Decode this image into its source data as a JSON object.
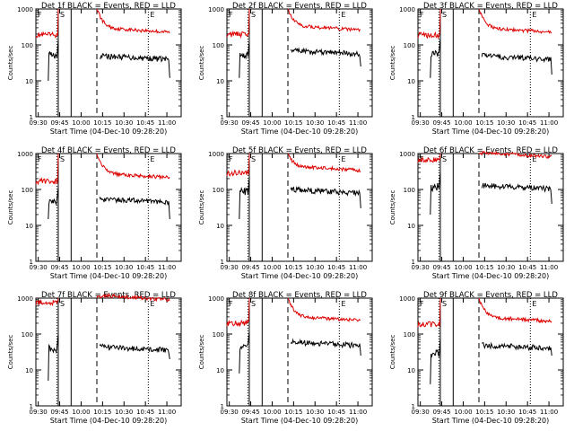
{
  "chart_data": [
    {
      "type": "line",
      "title": "Det 1f BLACK = Events, RED = LLD",
      "xlabel": "Start Time (04-Dec-10 09:28:20)",
      "ylabel": "Counts/sec",
      "yscale": "log",
      "ylim": [
        1,
        1000
      ],
      "x_ticks": [
        "09:30",
        "09:45",
        "10:00",
        "10:15",
        "10:30",
        "10:45",
        "11:00"
      ],
      "y_ticks": [
        "1",
        "10",
        "100",
        "1000"
      ],
      "markers": [
        "F",
        "S",
        "E"
      ],
      "series": [
        {
          "name": "RED = LLD",
          "color": "#dd0000",
          "level_before": 190,
          "level_after": 200,
          "peak": 1000
        },
        {
          "name": "BLACK = Events",
          "color": "#000000",
          "level_before": 55,
          "level_after": 50,
          "start": 10,
          "end": 12
        }
      ]
    },
    {
      "type": "line",
      "title": "Det 2f BLACK = Events, RED = LLD",
      "xlabel": "Start Time (04-Dec-10 09:28:20)",
      "ylabel": "Counts/sec",
      "yscale": "log",
      "ylim": [
        1,
        1000
      ],
      "x_ticks": [
        "09:30",
        "09:45",
        "10:00",
        "10:15",
        "10:30",
        "10:45",
        "11:00"
      ],
      "y_ticks": [
        "1",
        "10",
        "100",
        "1000"
      ],
      "markers": [
        "F",
        "S",
        "E"
      ],
      "series": [
        {
          "name": "RED = LLD",
          "color": "#dd0000",
          "level_before": 200,
          "level_after": 230,
          "peak": 1000
        },
        {
          "name": "BLACK = Events",
          "color": "#000000",
          "level_before": 50,
          "level_after": 70,
          "start": 12,
          "end": 25
        }
      ]
    },
    {
      "type": "line",
      "title": "Det 3f BLACK = Events, RED = LLD",
      "xlabel": "Start Time (04-Dec-10 09:28:20)",
      "ylabel": "Counts/sec",
      "yscale": "log",
      "ylim": [
        1,
        1000
      ],
      "x_ticks": [
        "09:30",
        "09:45",
        "10:00",
        "10:15",
        "10:30",
        "10:45",
        "11:00"
      ],
      "y_ticks": [
        "1",
        "10",
        "100",
        "1000"
      ],
      "markers": [
        "F",
        "S",
        "E"
      ],
      "series": [
        {
          "name": "RED = LLD",
          "color": "#dd0000",
          "level_before": 190,
          "level_after": 200,
          "peak": 1000
        },
        {
          "name": "BLACK = Events",
          "color": "#000000",
          "level_before": 60,
          "level_after": 50,
          "start": 12,
          "end": 15
        }
      ]
    },
    {
      "type": "line",
      "title": "Det 4f BLACK = Events, RED = LLD",
      "xlabel": "Start Time (04-Dec-10 09:28:20)",
      "ylabel": "Counts/sec",
      "yscale": "log",
      "ylim": [
        1,
        1000
      ],
      "x_ticks": [
        "09:30",
        "09:45",
        "10:00",
        "10:15",
        "10:30",
        "10:45",
        "11:00"
      ],
      "y_ticks": [
        "1",
        "10",
        "100",
        "1000"
      ],
      "markers": [
        "F",
        "S",
        "E"
      ],
      "series": [
        {
          "name": "RED = LLD",
          "color": "#dd0000",
          "level_before": 170,
          "level_after": 190,
          "peak": 1000
        },
        {
          "name": "BLACK = Events",
          "color": "#000000",
          "level_before": 45,
          "level_after": 55,
          "start": 15,
          "end": 15
        }
      ]
    },
    {
      "type": "line",
      "title": "Det 5f BLACK = Events, RED = LLD",
      "xlabel": "Start Time (04-Dec-10 09:28:20)",
      "ylabel": "Counts/sec",
      "yscale": "log",
      "ylim": [
        1,
        1000
      ],
      "x_ticks": [
        "09:30",
        "09:45",
        "10:00",
        "10:15",
        "10:30",
        "10:45",
        "11:00"
      ],
      "y_ticks": [
        "1",
        "10",
        "100",
        "1000"
      ],
      "markers": [
        "F",
        "S",
        "E"
      ],
      "series": [
        {
          "name": "RED = LLD",
          "color": "#dd0000",
          "level_before": 290,
          "level_after": 300,
          "peak": 1000
        },
        {
          "name": "BLACK = Events",
          "color": "#000000",
          "level_before": 90,
          "level_after": 100,
          "start": 15,
          "end": 30
        }
      ]
    },
    {
      "type": "line",
      "title": "Det 6f BLACK = Events, RED = LLD",
      "xlabel": "Start Time (04-Dec-10 09:28:20)",
      "ylabel": "Counts/sec",
      "yscale": "log",
      "ylim": [
        1,
        1000
      ],
      "x_ticks": [
        "09:30",
        "09:45",
        "10:00",
        "10:15",
        "10:30",
        "10:45",
        "11:00"
      ],
      "y_ticks": [
        "1",
        "10",
        "100",
        "1000"
      ],
      "markers": [
        "F",
        "S",
        "E"
      ],
      "series": [
        {
          "name": "RED = LLD",
          "color": "#dd0000",
          "level_before": 680,
          "level_after": 720,
          "peak": 1000
        },
        {
          "name": "BLACK = Events",
          "color": "#000000",
          "level_before": 120,
          "level_after": 130,
          "start": 20,
          "end": 40
        }
      ]
    },
    {
      "type": "line",
      "title": "Det 7f BLACK = Events, RED = LLD",
      "xlabel": "Start Time (04-Dec-10 09:28:20)",
      "ylabel": "Counts/sec",
      "yscale": "log",
      "ylim": [
        1,
        1000
      ],
      "x_ticks": [
        "09:30",
        "09:45",
        "10:00",
        "10:15",
        "10:30",
        "10:45",
        "11:00"
      ],
      "y_ticks": [
        "1",
        "10",
        "100",
        "1000"
      ],
      "markers": [
        "F",
        "S",
        "E"
      ],
      "series": [
        {
          "name": "RED = LLD",
          "color": "#dd0000",
          "level_before": 780,
          "level_after": 800,
          "peak": 1000
        },
        {
          "name": "BLACK = Events",
          "color": "#000000",
          "level_before": 40,
          "level_after": 45,
          "start": 5,
          "end": 20
        }
      ]
    },
    {
      "type": "line",
      "title": "Det 8f BLACK = Events, RED = LLD",
      "xlabel": "Start Time (04-Dec-10 09:28:20)",
      "ylabel": "Counts/sec",
      "yscale": "log",
      "ylim": [
        1,
        1000
      ],
      "x_ticks": [
        "09:30",
        "09:45",
        "10:00",
        "10:15",
        "10:30",
        "10:45",
        "11:00"
      ],
      "y_ticks": [
        "1",
        "10",
        "100",
        "1000"
      ],
      "markers": [
        "F",
        "S",
        "E"
      ],
      "series": [
        {
          "name": "RED = LLD",
          "color": "#dd0000",
          "level_before": 200,
          "level_after": 210,
          "peak": 1000
        },
        {
          "name": "BLACK = Events",
          "color": "#000000",
          "level_before": 45,
          "level_after": 60,
          "start": 8,
          "end": 25
        }
      ]
    },
    {
      "type": "line",
      "title": "Det 9f BLACK = Events, RED = LLD",
      "xlabel": "Start Time (04-Dec-10 09:28:20)",
      "ylabel": "Counts/sec",
      "yscale": "log",
      "ylim": [
        1,
        1000
      ],
      "x_ticks": [
        "09:30",
        "09:45",
        "10:00",
        "10:15",
        "10:30",
        "10:45",
        "11:00"
      ],
      "y_ticks": [
        "1",
        "10",
        "100",
        "1000"
      ],
      "markers": [
        "F",
        "S",
        "E"
      ],
      "series": [
        {
          "name": "RED = LLD",
          "color": "#dd0000",
          "level_before": 190,
          "level_after": 200,
          "peak": 1000
        },
        {
          "name": "BLACK = Events",
          "color": "#000000",
          "level_before": 30,
          "level_after": 50,
          "start": 4,
          "end": 25
        }
      ]
    }
  ]
}
